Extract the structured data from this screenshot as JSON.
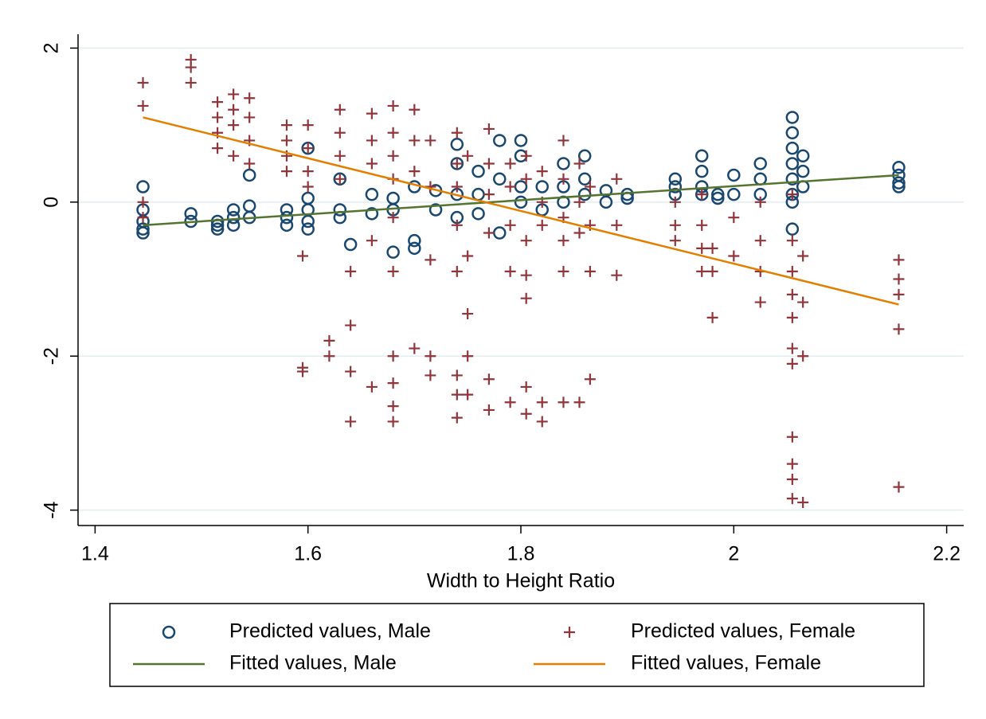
{
  "chart_data": {
    "type": "scatter",
    "x_label": "Width to Height Ratio",
    "xlim": [
      1.384,
      2.216
    ],
    "xticks": [
      1.4,
      1.6,
      1.8,
      2,
      2.2
    ],
    "ylim": [
      -4.2,
      2.18
    ],
    "yticks": [
      -4,
      -2,
      0,
      2
    ],
    "grid": true,
    "legend": "bottom",
    "series": [
      {
        "name": "Predicted values, Male",
        "style": "circle",
        "color": "#1a476f",
        "x": [
          1.445,
          1.445,
          1.445,
          1.445,
          1.445,
          1.49,
          1.49,
          1.515,
          1.515,
          1.515,
          1.53,
          1.53,
          1.53,
          1.545,
          1.545,
          1.545,
          1.58,
          1.58,
          1.58,
          1.6,
          1.6,
          1.6,
          1.6,
          1.6,
          1.63,
          1.63,
          1.63,
          1.64,
          1.66,
          1.66,
          1.68,
          1.68,
          1.68,
          1.7,
          1.7,
          1.7,
          1.72,
          1.72,
          1.74,
          1.74,
          1.74,
          1.74,
          1.76,
          1.76,
          1.76,
          1.78,
          1.78,
          1.78,
          1.8,
          1.8,
          1.8,
          1.8,
          1.82,
          1.82,
          1.84,
          1.84,
          1.84,
          1.86,
          1.86,
          1.86,
          1.88,
          1.88,
          1.9,
          1.9,
          1.945,
          1.945,
          1.945,
          1.97,
          1.97,
          1.97,
          1.97,
          1.985,
          1.985,
          2,
          2,
          2.025,
          2.025,
          2.025,
          2.055,
          2.055,
          2.055,
          2.055,
          2.055,
          2.055,
          2.055,
          2.055,
          2.065,
          2.065,
          2.065,
          2.155,
          2.155,
          2.155,
          2.155
        ],
        "values": [
          0.2,
          -0.1,
          -0.25,
          -0.4,
          -0.35,
          -0.15,
          -0.25,
          -0.25,
          -0.35,
          -0.3,
          -0.1,
          -0.2,
          -0.3,
          0.35,
          -0.05,
          -0.2,
          -0.1,
          -0.2,
          -0.3,
          0.05,
          -0.1,
          -0.25,
          -0.35,
          0.7,
          0.3,
          -0.1,
          -0.2,
          -0.55,
          0.1,
          -0.15,
          -0.65,
          0.05,
          -0.1,
          -0.5,
          -0.6,
          0.2,
          0.15,
          -0.1,
          0.75,
          0.5,
          0.1,
          -0.2,
          0.4,
          0.1,
          -0.15,
          0.8,
          0.3,
          -0.4,
          0.8,
          0.6,
          0.2,
          0,
          0.2,
          -0.1,
          0.5,
          0.2,
          0,
          0.6,
          0.3,
          0.1,
          0.15,
          0,
          0.1,
          0.05,
          0.3,
          0.2,
          0.1,
          0.6,
          0.4,
          0.2,
          0.1,
          0.1,
          0.05,
          0.35,
          0.1,
          0.5,
          0.3,
          0.1,
          1.1,
          0.9,
          0.7,
          0.5,
          0.3,
          0.1,
          0,
          -0.35,
          0.6,
          0.4,
          0.2,
          0.45,
          0.35,
          0.25,
          0.2
        ]
      },
      {
        "name": "Predicted values, Female",
        "style": "plus",
        "color": "#90353b",
        "x": [
          1.445,
          1.445,
          1.445,
          1.445,
          1.49,
          1.49,
          1.49,
          1.515,
          1.515,
          1.515,
          1.515,
          1.53,
          1.53,
          1.53,
          1.53,
          1.545,
          1.545,
          1.545,
          1.545,
          1.58,
          1.58,
          1.58,
          1.58,
          1.595,
          1.595,
          1.595,
          1.6,
          1.6,
          1.6,
          1.6,
          1.62,
          1.62,
          1.64,
          1.64,
          1.64,
          1.64,
          1.63,
          1.63,
          1.63,
          1.63,
          1.66,
          1.66,
          1.66,
          1.66,
          1.66,
          1.68,
          1.68,
          1.68,
          1.68,
          1.68,
          1.68,
          1.68,
          1.68,
          1.68,
          1.68,
          1.7,
          1.7,
          1.7,
          1.7,
          1.715,
          1.715,
          1.715,
          1.715,
          1.715,
          1.74,
          1.74,
          1.74,
          1.74,
          1.74,
          1.74,
          1.74,
          1.74,
          1.75,
          1.75,
          1.75,
          1.75,
          1.75,
          1.77,
          1.77,
          1.77,
          1.77,
          1.77,
          1.77,
          1.79,
          1.79,
          1.79,
          1.79,
          1.79,
          1.805,
          1.805,
          1.805,
          1.805,
          1.805,
          1.805,
          1.805,
          1.82,
          1.82,
          1.82,
          1.82,
          1.82,
          1.84,
          1.84,
          1.84,
          1.84,
          1.84,
          1.84,
          1.855,
          1.855,
          1.855,
          1.855,
          1.865,
          1.865,
          1.865,
          1.865,
          1.89,
          1.89,
          1.89,
          1.945,
          1.945,
          1.945,
          1.97,
          1.97,
          1.97,
          1.97,
          1.98,
          1.98,
          1.98,
          2,
          2,
          2.025,
          2.025,
          2.025,
          2.025,
          2.055,
          2.055,
          2.055,
          2.055,
          2.055,
          2.055,
          2.055,
          2.055,
          2.055,
          2.055,
          2.055,
          2.065,
          2.065,
          2.065,
          2.065,
          2.155,
          2.155,
          2.155,
          2.155,
          2.155
        ],
        "values": [
          1.55,
          1.25,
          0,
          -0.2,
          1.85,
          1.75,
          1.55,
          1.3,
          1.1,
          0.9,
          0.7,
          1.4,
          1.2,
          1,
          0.6,
          1.35,
          1.1,
          0.8,
          0.5,
          1,
          0.8,
          0.6,
          0.4,
          -0.7,
          -2.2,
          -2.15,
          1,
          0.7,
          0.4,
          0.2,
          -1.8,
          -2,
          -0.9,
          -1.6,
          -2.2,
          -2.85,
          1.2,
          0.9,
          0.6,
          0.3,
          1.15,
          0.8,
          0.5,
          -0.5,
          -2.4,
          1.25,
          0.9,
          0.6,
          0.3,
          -0.2,
          -0.9,
          -2,
          -2.35,
          -2.65,
          -2.85,
          1.2,
          0.8,
          0.4,
          -1.9,
          0.8,
          0.2,
          -0.75,
          -2,
          -2.25,
          0.9,
          0.5,
          0.2,
          -0.3,
          -0.9,
          -2.25,
          -2.5,
          -2.8,
          0.6,
          -0.7,
          -1.45,
          -2,
          -2.5,
          0.95,
          0.5,
          0.1,
          -0.4,
          -2.3,
          -2.7,
          0.5,
          0.2,
          -0.3,
          -0.9,
          -2.6,
          0.6,
          0.3,
          -0.5,
          -0.95,
          -1.25,
          -2.4,
          -2.75,
          0.4,
          0,
          -0.3,
          -2.6,
          -2.85,
          0.8,
          0.3,
          -0.2,
          -0.5,
          -0.9,
          -2.6,
          0.5,
          0,
          -0.4,
          -2.6,
          0.2,
          -0.3,
          -0.9,
          -2.3,
          0.3,
          -0.3,
          -0.95,
          0,
          -0.3,
          -0.5,
          0.1,
          -0.3,
          -0.6,
          -0.9,
          -0.6,
          -0.9,
          -1.5,
          -0.2,
          -0.7,
          0,
          -0.5,
          -0.9,
          -1.3,
          0.1,
          -0.5,
          -0.9,
          -1.2,
          -1.5,
          -1.9,
          -2.1,
          -3.05,
          -3.4,
          -3.6,
          -3.85,
          -0.7,
          -1.3,
          -2,
          -3.9,
          -0.75,
          -1,
          -1.2,
          -1.65,
          -3.7
        ]
      },
      {
        "name": "Fitted values, Male",
        "style": "line",
        "color": "#55752f",
        "x": [
          1.445,
          2.155
        ],
        "values": [
          -0.3,
          0.35
        ]
      },
      {
        "name": "Fitted values, Female",
        "style": "line",
        "color": "#e37e00",
        "x": [
          1.445,
          2.155
        ],
        "values": [
          1.1,
          -1.33
        ]
      }
    ]
  }
}
